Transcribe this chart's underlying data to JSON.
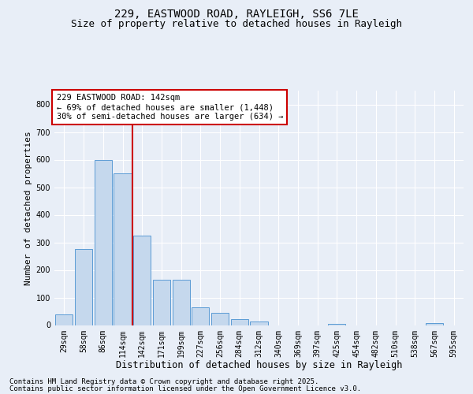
{
  "title1": "229, EASTWOOD ROAD, RAYLEIGH, SS6 7LE",
  "title2": "Size of property relative to detached houses in Rayleigh",
  "xlabel": "Distribution of detached houses by size in Rayleigh",
  "ylabel": "Number of detached properties",
  "categories": [
    "29sqm",
    "58sqm",
    "86sqm",
    "114sqm",
    "142sqm",
    "171sqm",
    "199sqm",
    "227sqm",
    "256sqm",
    "284sqm",
    "312sqm",
    "340sqm",
    "369sqm",
    "397sqm",
    "425sqm",
    "454sqm",
    "482sqm",
    "510sqm",
    "538sqm",
    "567sqm",
    "595sqm"
  ],
  "values": [
    40,
    275,
    600,
    550,
    325,
    163,
    163,
    65,
    45,
    22,
    13,
    0,
    0,
    0,
    5,
    0,
    0,
    0,
    0,
    8,
    0
  ],
  "bar_color": "#c5d8ed",
  "bar_edge_color": "#5b9bd5",
  "vline_color": "#cc0000",
  "annotation_text": "229 EASTWOOD ROAD: 142sqm\n← 69% of detached houses are smaller (1,448)\n30% of semi-detached houses are larger (634) →",
  "annotation_box_color": "#cc0000",
  "ylim": [
    0,
    850
  ],
  "yticks": [
    0,
    100,
    200,
    300,
    400,
    500,
    600,
    700,
    800
  ],
  "bg_color": "#e8eef7",
  "plot_bg_color": "#e8eef7",
  "grid_color": "#ffffff",
  "footer1": "Contains HM Land Registry data © Crown copyright and database right 2025.",
  "footer2": "Contains public sector information licensed under the Open Government Licence v3.0.",
  "title_fontsize": 10,
  "subtitle_fontsize": 9,
  "xlabel_fontsize": 8.5,
  "ylabel_fontsize": 8,
  "tick_fontsize": 7,
  "footer_fontsize": 6.5,
  "ann_fontsize": 7.5
}
